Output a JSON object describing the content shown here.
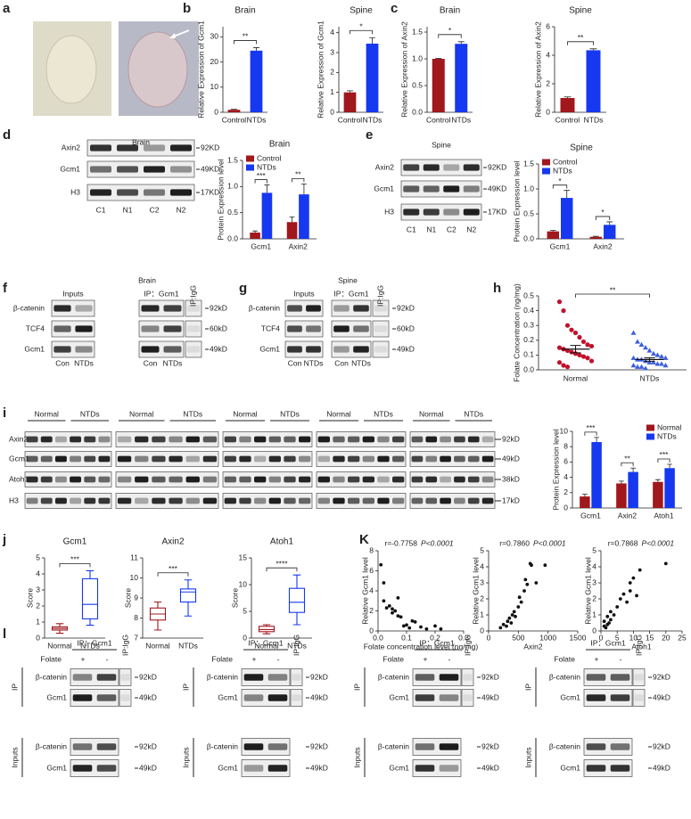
{
  "panel_labels": [
    "a",
    "b",
    "c",
    "d",
    "e",
    "f",
    "g",
    "h",
    "i",
    "j",
    "K",
    "l"
  ],
  "chart_data": [
    {
      "type": "bar",
      "title": "Brain",
      "ylabel": "Relative Expression of Gcm1",
      "categories": [
        "Control",
        "NTDs"
      ],
      "values": [
        1,
        24.5
      ],
      "errors": [
        0.2,
        1.2
      ],
      "colors": [
        "#a0171c",
        "#1638f0"
      ],
      "ylim": [
        0,
        34
      ],
      "yticks": [
        0,
        10,
        20,
        30
      ],
      "annotations": [
        "**"
      ]
    },
    {
      "type": "bar",
      "title": "Spine",
      "ylabel": "Relative Expression of Gcm1",
      "categories": [
        "Control",
        "NTDs"
      ],
      "values": [
        1,
        3.45
      ],
      "errors": [
        0.08,
        0.3
      ],
      "colors": [
        "#a0171c",
        "#1638f0"
      ],
      "ylim": [
        0,
        4.3
      ],
      "yticks": [
        0,
        1,
        2,
        3,
        4
      ],
      "annotations": [
        "*"
      ]
    },
    {
      "type": "bar",
      "title": "Brain",
      "ylabel": "Relative Expression of Axin2",
      "categories": [
        "Control",
        "NTDs"
      ],
      "values": [
        1.0,
        1.28
      ],
      "errors": [
        0.01,
        0.04
      ],
      "colors": [
        "#a0171c",
        "#1638f0"
      ],
      "ylim": [
        0,
        1.6
      ],
      "yticks": [
        {
          "value": 0,
          "label": "0.0"
        },
        {
          "value": 0.5,
          "label": "0.5"
        },
        {
          "value": 1,
          "label": "1.0"
        },
        {
          "value": 1.5,
          "label": "1.5"
        }
      ],
      "annotations": [
        "*"
      ]
    },
    {
      "type": "bar",
      "title": "Spine",
      "ylabel": "Relative Expression of Axin2",
      "categories": [
        "Control",
        "NTDs"
      ],
      "values": [
        1.0,
        4.35
      ],
      "errors": [
        0.08,
        0.1
      ],
      "colors": [
        "#a0171c",
        "#1638f0"
      ],
      "ylim": [
        0,
        6
      ],
      "yticks": [
        0,
        2,
        4,
        6
      ],
      "annotations": [
        "**"
      ]
    },
    {
      "type": "grouped_bar",
      "title": "Brain",
      "ylabel": "Protein Expression level",
      "categories": [
        "Gcm1",
        "Axin2"
      ],
      "series": [
        {
          "name": "Control",
          "color": "#a0171c",
          "values": [
            0.12,
            0.32
          ],
          "errors": [
            0.03,
            0.1
          ]
        },
        {
          "name": "NTDs",
          "color": "#1638f0",
          "values": [
            0.88,
            0.85
          ],
          "errors": [
            0.15,
            0.2
          ]
        }
      ],
      "ylim": [
        0,
        1.5
      ],
      "yticks": [
        {
          "value": 0,
          "label": "0.0"
        },
        {
          "value": 0.5,
          "label": "0.5"
        },
        {
          "value": 1,
          "label": "1.0"
        },
        {
          "value": 1.5,
          "label": "1.5"
        }
      ],
      "annotations": [
        "***",
        "**"
      ],
      "legend": "top-left"
    },
    {
      "type": "grouped_bar",
      "title": "Spine",
      "ylabel": "Protein Expression level",
      "categories": [
        "Gcm1",
        "Axin2"
      ],
      "series": [
        {
          "name": "Control",
          "color": "#a0171c",
          "values": [
            0.15,
            0.04
          ],
          "errors": [
            0.02,
            0.01
          ]
        },
        {
          "name": "NTDs",
          "color": "#1638f0",
          "values": [
            0.82,
            0.28
          ],
          "errors": [
            0.15,
            0.06
          ]
        }
      ],
      "ylim": [
        0,
        1.5
      ],
      "yticks": [
        {
          "value": 0,
          "label": "0.0"
        },
        {
          "value": 0.5,
          "label": "0.5"
        },
        {
          "value": 1,
          "label": "1.0"
        },
        {
          "value": 1.5,
          "label": "1.5"
        }
      ],
      "annotations": [
        "*",
        "*"
      ],
      "legend": "top-left"
    },
    {
      "type": "strip",
      "ylabel": "Folate Concentration (ng/mg)",
      "categories": [
        "Normal",
        "NTDs"
      ],
      "colors": [
        "#c2102b",
        "#3c5ee0"
      ],
      "markers": [
        "circle",
        "triangle"
      ],
      "values": [
        [
          0.46,
          0.4,
          0.3,
          0.27,
          0.25,
          0.22,
          0.19,
          0.17,
          0.16,
          0.15,
          0.14,
          0.13,
          0.12,
          0.11,
          0.1,
          0.09,
          0.08,
          0.06,
          0.05,
          0.03,
          0.02
        ],
        [
          0.25,
          0.19,
          0.17,
          0.15,
          0.13,
          0.11,
          0.1,
          0.09,
          0.08,
          0.08,
          0.07,
          0.07,
          0.06,
          0.05,
          0.05,
          0.04,
          0.04,
          0.03,
          0.03,
          0.02,
          0.02,
          0.01
        ]
      ],
      "means": [
        0.14,
        0.07
      ],
      "errors": [
        0.025,
        0.012
      ],
      "ylim": [
        0,
        0.5
      ],
      "yticks": [
        {
          "value": 0,
          "label": "0.0"
        },
        {
          "value": 0.1,
          "label": "0.1"
        },
        {
          "value": 0.2,
          "label": "0.2"
        },
        {
          "value": 0.3,
          "label": "0.3"
        },
        {
          "value": 0.4,
          "label": "0.4"
        },
        {
          "value": 0.5,
          "label": "0.5"
        }
      ],
      "annotations": [
        "**"
      ]
    },
    {
      "type": "grouped_bar",
      "ylabel": "Protein Expression level",
      "categories": [
        "Gcm1",
        "Axin2",
        "Atoh1"
      ],
      "series": [
        {
          "name": "Normal",
          "color": "#a0171c",
          "values": [
            1.5,
            3.2,
            3.4
          ],
          "errors": [
            0.3,
            0.3,
            0.3
          ]
        },
        {
          "name": "NTDs",
          "color": "#1638f0",
          "values": [
            8.6,
            4.7,
            5.2
          ],
          "errors": [
            0.6,
            0.5,
            0.5
          ]
        }
      ],
      "ylim": [
        0,
        10
      ],
      "yticks": [
        0,
        2,
        4,
        6,
        8,
        10
      ],
      "annotations": [
        "***",
        "**",
        "***"
      ],
      "legend": "top-right"
    },
    {
      "type": "box",
      "title": "Gcm1",
      "ylabel": "Score",
      "categories": [
        "Normal",
        "NTDs"
      ],
      "colors": [
        "#a0171c",
        "#1638f0"
      ],
      "boxes": [
        [
          0.3,
          0.5,
          0.6,
          0.7,
          0.9
        ],
        [
          0.8,
          1.2,
          2.1,
          3.7,
          4.2
        ]
      ],
      "ylim": [
        0,
        5
      ],
      "yticks": [
        0,
        1,
        2,
        3,
        4,
        5
      ],
      "annotations": [
        "***"
      ]
    },
    {
      "type": "box",
      "title": "Axin2",
      "ylabel": "Score",
      "categories": [
        "Normal",
        "NTDs"
      ],
      "colors": [
        "#a0171c",
        "#1638f0"
      ],
      "boxes": [
        [
          7.4,
          7.9,
          8.2,
          8.5,
          8.8
        ],
        [
          8.1,
          8.8,
          9.3,
          9.45,
          9.9
        ]
      ],
      "ylim": [
        7,
        11
      ],
      "yticks": [
        7,
        8,
        9,
        10,
        11
      ],
      "annotations": [
        "***"
      ]
    },
    {
      "type": "box",
      "title": "Atoh1",
      "ylabel": "Score",
      "categories": [
        "Normal",
        "NTDs"
      ],
      "colors": [
        "#a0171c",
        "#1638f0"
      ],
      "boxes": [
        [
          0.8,
          1.2,
          1.6,
          2.2,
          2.5
        ],
        [
          2.5,
          4.8,
          6.7,
          9.3,
          11.8
        ]
      ],
      "ylim": [
        0,
        15
      ],
      "yticks": [
        0,
        5,
        10,
        15
      ],
      "annotations": [
        "****"
      ]
    },
    {
      "type": "scatter",
      "r": "r=-0.7758",
      "p": "P<0.0001",
      "xlabel": "Folate concentration level (ng/mg)",
      "ylabel": "Relative Gcm1 level",
      "x": [
        0.01,
        0.02,
        0.02,
        0.03,
        0.04,
        0.05,
        0.05,
        0.06,
        0.07,
        0.07,
        0.08,
        0.09,
        0.1,
        0.11,
        0.12,
        0.13,
        0.15,
        0.17,
        0.2,
        0.22
      ],
      "y": [
        6.6,
        4.8,
        3.0,
        2.3,
        2.5,
        2.2,
        1.8,
        2.0,
        1.5,
        3.3,
        1.4,
        0.5,
        0.6,
        0.3,
        1.0,
        0.9,
        0.4,
        0.2,
        0.5,
        0.2
      ],
      "xlim": [
        0,
        0.3
      ],
      "xticks": [
        {
          "value": 0,
          "label": "0.0"
        },
        0.1,
        0.2,
        0.3
      ],
      "ylim": [
        0,
        8
      ],
      "yticks": [
        0,
        2,
        4,
        6,
        8
      ]
    },
    {
      "type": "scatter",
      "r": "r=0.7860",
      "p": "P<0.0001",
      "xlabel": "Axin2",
      "ylabel": "Relative Gcm1 level",
      "x": [
        200,
        250,
        300,
        320,
        350,
        380,
        400,
        430,
        450,
        500,
        520,
        550,
        600,
        620,
        650,
        700,
        720,
        800,
        950
      ],
      "y": [
        0.2,
        0.4,
        0.3,
        0.6,
        0.8,
        0.5,
        1.0,
        1.2,
        0.9,
        1.5,
        2.1,
        1.8,
        2.5,
        3.2,
        2.9,
        4.2,
        4.1,
        3.0,
        4.1
      ],
      "xlim": [
        0,
        1500
      ],
      "xticks": [
        0,
        500,
        1000,
        1500
      ],
      "ylim": [
        0,
        5
      ],
      "yticks": [
        0,
        1,
        2,
        3,
        4,
        5
      ]
    },
    {
      "type": "scatter",
      "r": "r=0.7868",
      "p": "P<0.0001",
      "xlabel": "Atoh1",
      "ylabel": "Relative Gcm1 level",
      "x": [
        1,
        1,
        1.5,
        2,
        2,
        2.5,
        3,
        3,
        4,
        5,
        6,
        7,
        8,
        9,
        9,
        10,
        11,
        12,
        20
      ],
      "y": [
        0.3,
        0.6,
        0.2,
        0.4,
        0.9,
        0.5,
        1.2,
        0.7,
        1.0,
        1.5,
        2.0,
        2.3,
        1.8,
        2.5,
        3.0,
        3.3,
        2.2,
        3.8,
        4.2
      ],
      "xlim": [
        0,
        25
      ],
      "xticks": [
        0,
        5,
        10,
        15,
        20,
        25
      ],
      "ylim": [
        0,
        5
      ],
      "yticks": [
        0,
        1,
        2,
        3,
        4,
        5
      ]
    }
  ],
  "blots": {
    "d": {
      "title": "Brain",
      "rows": [
        "Axin2",
        "Gcm1",
        "H3"
      ],
      "sizes": [
        "92KD",
        "49KD",
        "17KD"
      ],
      "lanes": [
        "C1",
        "N1",
        "C2",
        "N2"
      ]
    },
    "e": {
      "title": "Spine",
      "rows": [
        "Axin2",
        "Gcm1",
        "H3"
      ],
      "sizes": [
        "92KD",
        "49KD",
        "17KD"
      ],
      "lanes": [
        "C1",
        "N1",
        "C2",
        "N2"
      ]
    },
    "f": {
      "title": "Brain",
      "groups": [
        "Inputs",
        "IP：Gcm1",
        "IP:IgG"
      ],
      "rows": [
        "β-catenin",
        "TCF4",
        "Gcm1"
      ],
      "sizes": [
        "92kD",
        "60kD",
        "49kD"
      ],
      "lanes": [
        "Con",
        "NTDs",
        "Con",
        "NTDs"
      ]
    },
    "g": {
      "title": "Spine",
      "groups": [
        "Inputs",
        "IP：Gcm1",
        "IP:IgG"
      ],
      "rows": [
        "β-catenin",
        "TCF4",
        "Gcm1"
      ],
      "sizes": [
        "92kD",
        "60kD",
        "49kD"
      ],
      "lanes": [
        "Con",
        "NTDs",
        "Con",
        "NTDs"
      ]
    },
    "i": {
      "groups": [
        "Normal",
        "NTDs",
        "Normal",
        "NTDs",
        "Normal",
        "NTDs",
        "Normal",
        "NTDs",
        "Normal",
        "NTDs"
      ],
      "rows": [
        "Axin2",
        "Gcm1",
        "Atoh1",
        "H3"
      ],
      "sizes": [
        "92kD",
        "49kD",
        "38kD",
        "17kD"
      ]
    },
    "l": [
      {
        "ip": "IP：Gcm1",
        "igg": "IP:IgG",
        "treatment": "Folate",
        "lanes": [
          "+",
          "-"
        ],
        "sections": [
          "IP",
          "Inputs"
        ],
        "rows": [
          "β-catenin",
          "Gcm1",
          "β-catenin",
          "Gcm1"
        ],
        "sizes": [
          "92kD",
          "49kD",
          "92kD",
          "49kD"
        ]
      },
      {
        "ip": "IP：Gcm1",
        "igg": "IP:IgG",
        "treatment": "Folate",
        "lanes": [
          "+",
          "-"
        ],
        "sections": [
          "IP",
          "Inputs"
        ],
        "rows": [
          "β-catenin",
          "Gcm1",
          "β-catenin",
          "Gcm1"
        ],
        "sizes": [
          "92kD",
          "49kD",
          "92kD",
          "49kD"
        ]
      },
      {
        "ip": "IP：Gcm1",
        "igg": "IP:IgG",
        "treatment": "Folate",
        "lanes": [
          "+",
          "-"
        ],
        "sections": [
          "IP",
          "Inputs"
        ],
        "rows": [
          "β-catenin",
          "Gcm1",
          "β-catenin",
          "Gcm1"
        ],
        "sizes": [
          "92kD",
          "49kD",
          "92kD",
          "49kD"
        ]
      },
      {
        "ip": "IP：Gcm1",
        "igg": "IP:IgG",
        "treatment": "Folate",
        "lanes": [
          "+",
          "-"
        ],
        "sections": [
          "IP",
          "Inputs"
        ],
        "rows": [
          "β-catenin",
          "Gcm1",
          "β-catenin",
          "Gcm1"
        ],
        "sizes": [
          "92kD",
          "49kD",
          "92kD",
          "49kD"
        ]
      }
    ]
  }
}
